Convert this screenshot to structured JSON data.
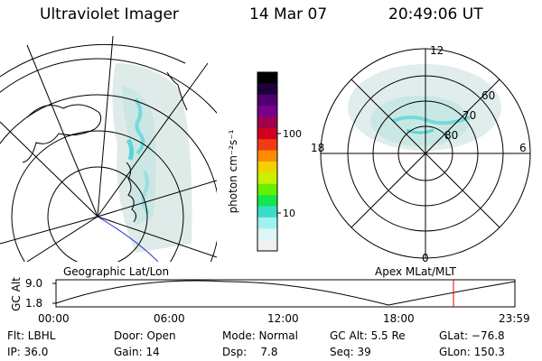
{
  "header": {
    "title": "Ultraviolet Imager",
    "date": "14 Mar 07",
    "time": "20:49:06 UT"
  },
  "colorbar": {
    "unit_label": "photon cm⁻²s⁻¹",
    "ticks": [
      "100",
      "10"
    ],
    "colors_top_to_bottom": [
      "#000000",
      "#1e003c",
      "#50006e",
      "#78008c",
      "#a0004b",
      "#d2001e",
      "#f03c14",
      "#ff8c00",
      "#f0d200",
      "#c8f000",
      "#64f000",
      "#14e650",
      "#3cdcc8",
      "#a0f0f0",
      "#dcf5f5",
      "#f0f0f0"
    ]
  },
  "polar_plot": {
    "mlt_labels": {
      "top": "12",
      "right": "6",
      "bottom": "0",
      "left": "18"
    },
    "lat_labels": [
      "60",
      "70",
      "80"
    ]
  },
  "panel_labels": {
    "left": "Geographic Lat/Lon",
    "right": "Apex MLat/MLT"
  },
  "altitude_panel": {
    "axis_label": "GC Alt",
    "y_ticks": [
      "9.0",
      "1.8"
    ],
    "time_ticks": [
      "00:00",
      "06:00",
      "12:00",
      "18:00",
      "23:59"
    ],
    "current_time_marker_color": "#e00000"
  },
  "footer": {
    "row1": [
      "Flt: LBHL",
      "Door: Open",
      "Mode: Normal",
      "GC Alt: 5.5 Re",
      "GLat: −76.8"
    ],
    "row2": [
      "IP: 36.0",
      "Gain: 14",
      "Dsp:    7.8",
      "Seq: 39",
      "GLon: 150.3"
    ]
  }
}
